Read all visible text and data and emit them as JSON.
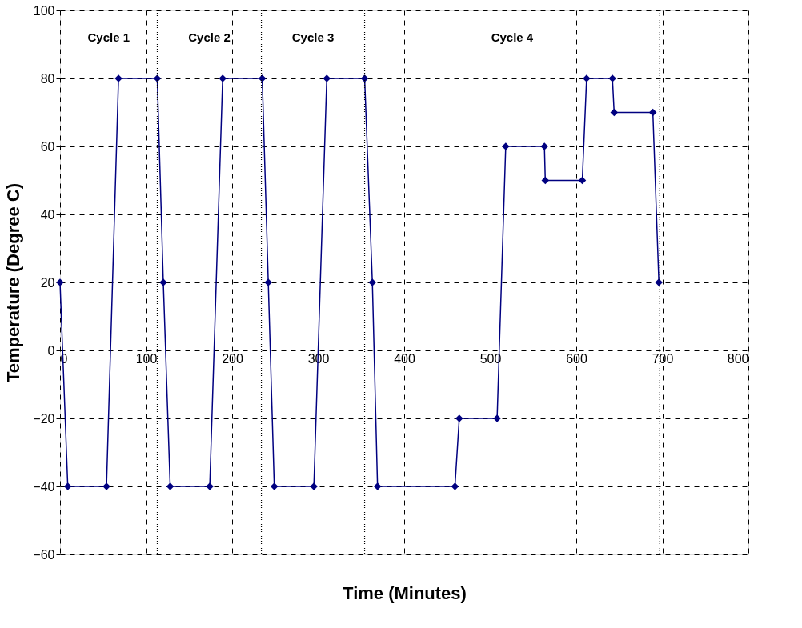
{
  "chart_data": {
    "type": "line",
    "xlabel": "Time (Minutes)",
    "ylabel": "Temperature (Degree C)",
    "x": [
      0,
      9,
      54,
      68,
      113,
      120,
      128,
      174,
      189,
      235,
      242,
      249,
      295,
      310,
      354,
      363,
      369,
      459,
      464,
      508,
      518,
      563,
      564,
      607,
      612,
      642,
      644,
      689,
      696
    ],
    "series": [
      {
        "color": "#000080",
        "values": [
          20,
          -40,
          -40,
          80,
          80,
          20,
          -40,
          -40,
          80,
          80,
          20,
          -40,
          -40,
          80,
          80,
          20,
          -40,
          -40,
          -20,
          -20,
          60,
          60,
          50,
          50,
          80,
          80,
          70,
          70,
          20
        ]
      }
    ],
    "xlim": [
      0,
      800
    ],
    "xticks": [
      0,
      100,
      200,
      300,
      400,
      500,
      600,
      700,
      800
    ],
    "ylim": [
      -60,
      100
    ],
    "yticks": [
      -60,
      -40,
      -20,
      0,
      20,
      40,
      60,
      80,
      100
    ],
    "ref_lines": [
      {
        "axis": "x",
        "value": 113,
        "color": "#000000",
        "line_style": "dotted"
      },
      {
        "axis": "x",
        "value": 234,
        "color": "#000000",
        "line_style": "dotted"
      },
      {
        "axis": "x",
        "value": 354,
        "color": "#000000",
        "line_style": "dotted"
      },
      {
        "axis": "x",
        "value": 697,
        "color": "#000000",
        "line_style": "dotted"
      }
    ],
    "annotations": [
      "Cycle 1",
      "Cycle 2",
      "Cycle 3",
      "Cycle 4"
    ],
    "grid": true,
    "marker": "diamond",
    "line_style": "solid"
  }
}
